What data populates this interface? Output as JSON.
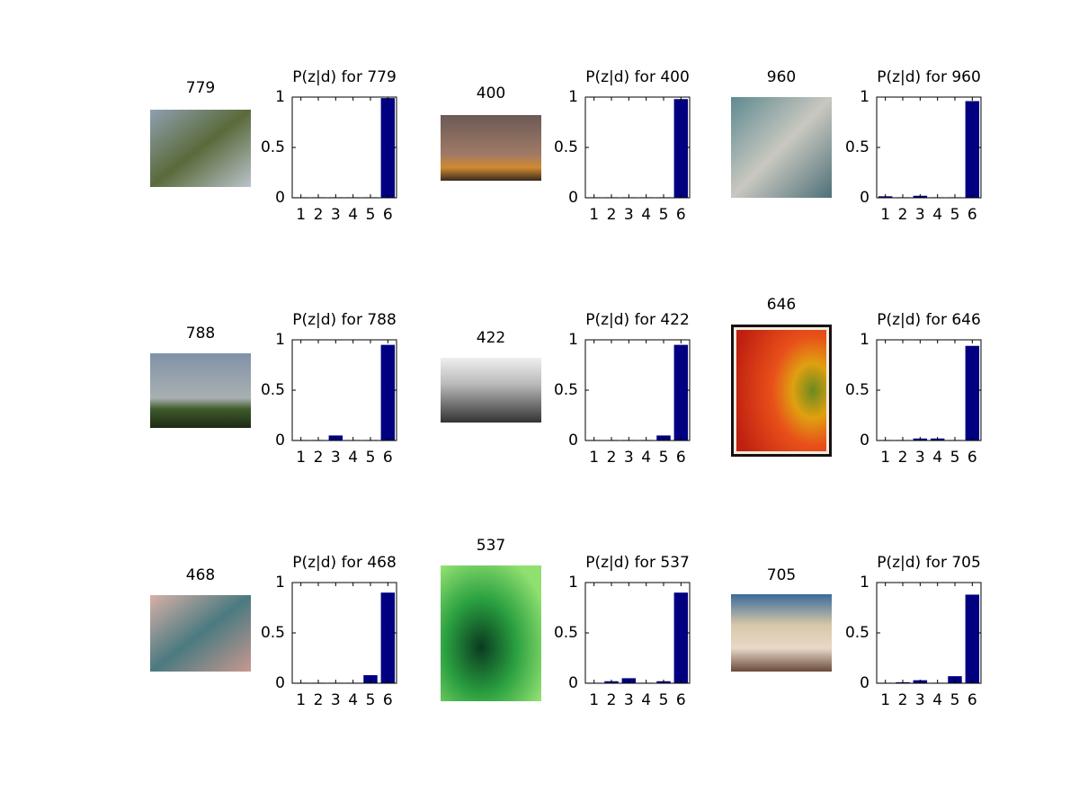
{
  "chart_data": [
    {
      "type": "bar",
      "annotation": "779",
      "title": "P(z|d) for 779",
      "categories": [
        "1",
        "2",
        "3",
        "4",
        "5",
        "6"
      ],
      "values": [
        0.005,
        0.005,
        0.005,
        0.005,
        0.005,
        0.99
      ],
      "color": "#000080",
      "ylim": [
        0,
        1
      ],
      "yticks": [
        0,
        0.5,
        1
      ]
    },
    {
      "type": "bar",
      "annotation": "400",
      "title": "P(z|d) for 400",
      "categories": [
        "1",
        "2",
        "3",
        "4",
        "5",
        "6"
      ],
      "values": [
        0.005,
        0.005,
        0.005,
        0.005,
        0.005,
        0.98
      ],
      "color": "#000080",
      "ylim": [
        0,
        1
      ],
      "yticks": [
        0,
        0.5,
        1
      ]
    },
    {
      "type": "bar",
      "annotation": "960",
      "title": "P(z|d) for 960",
      "categories": [
        "1",
        "2",
        "3",
        "4",
        "5",
        "6"
      ],
      "values": [
        0.015,
        0.005,
        0.02,
        0.005,
        0.005,
        0.96
      ],
      "color": "#000080",
      "ylim": [
        0,
        1
      ],
      "yticks": [
        0,
        0.5,
        1
      ]
    },
    {
      "type": "bar",
      "annotation": "788",
      "title": "P(z|d) for 788",
      "categories": [
        "1",
        "2",
        "3",
        "4",
        "5",
        "6"
      ],
      "values": [
        0.005,
        0.005,
        0.05,
        0.005,
        0.005,
        0.95
      ],
      "color": "#000080",
      "ylim": [
        0,
        1
      ],
      "yticks": [
        0,
        0.5,
        1
      ]
    },
    {
      "type": "bar",
      "annotation": "422",
      "title": "P(z|d) for 422",
      "categories": [
        "1",
        "2",
        "3",
        "4",
        "5",
        "6"
      ],
      "values": [
        0.005,
        0.005,
        0.005,
        0.005,
        0.05,
        0.95
      ],
      "color": "#000080",
      "ylim": [
        0,
        1
      ],
      "yticks": [
        0,
        0.5,
        1
      ]
    },
    {
      "type": "bar",
      "annotation": "646",
      "title": "P(z|d) for 646",
      "categories": [
        "1",
        "2",
        "3",
        "4",
        "5",
        "6"
      ],
      "values": [
        0.005,
        0.005,
        0.02,
        0.02,
        0.005,
        0.94
      ],
      "color": "#000080",
      "ylim": [
        0,
        1
      ],
      "yticks": [
        0,
        0.5,
        1
      ]
    },
    {
      "type": "bar",
      "annotation": "468",
      "title": "P(z|d) for 468",
      "categories": [
        "1",
        "2",
        "3",
        "4",
        "5",
        "6"
      ],
      "values": [
        0.005,
        0.005,
        0.005,
        0.005,
        0.08,
        0.9
      ],
      "color": "#000080",
      "ylim": [
        0,
        1
      ],
      "yticks": [
        0,
        0.5,
        1
      ]
    },
    {
      "type": "bar",
      "annotation": "537",
      "title": "P(z|d) for 537",
      "categories": [
        "1",
        "2",
        "3",
        "4",
        "5",
        "6"
      ],
      "values": [
        0.005,
        0.02,
        0.05,
        0.005,
        0.02,
        0.9
      ],
      "color": "#000080",
      "ylim": [
        0,
        1
      ],
      "yticks": [
        0,
        0.5,
        1
      ]
    },
    {
      "type": "bar",
      "annotation": "705",
      "title": "P(z|d) for 705",
      "categories": [
        "1",
        "2",
        "3",
        "4",
        "5",
        "6"
      ],
      "values": [
        0.005,
        0.01,
        0.03,
        0.005,
        0.07,
        0.88
      ],
      "color": "#000080",
      "ylim": [
        0,
        1
      ],
      "yticks": [
        0,
        0.5,
        1
      ]
    }
  ]
}
